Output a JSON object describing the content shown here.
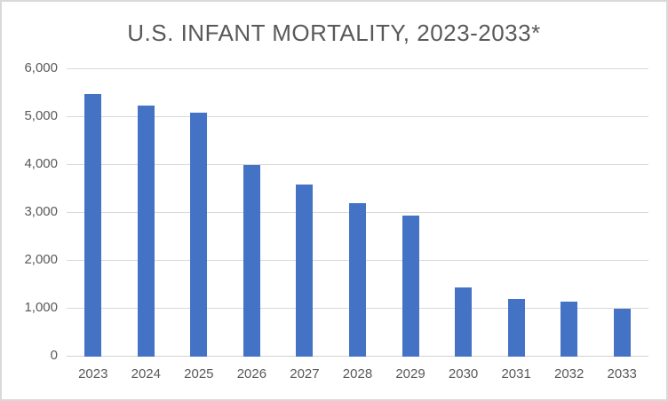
{
  "window": {
    "background_color": "#ffffff",
    "frame_border_color": "#d9d9d9"
  },
  "chart_data": {
    "type": "bar",
    "title": "U.S. INFANT MORTALITY, 2023-2033*",
    "categories": [
      "2023",
      "2024",
      "2025",
      "2026",
      "2027",
      "2028",
      "2029",
      "2030",
      "2031",
      "2032",
      "2033"
    ],
    "values": [
      5480,
      5250,
      5100,
      4000,
      3600,
      3200,
      2950,
      1450,
      1200,
      1150,
      1000
    ],
    "xlabel": "",
    "ylabel": "",
    "ylim": [
      0,
      6000
    ],
    "ytick_step": 1000,
    "yticks": [
      0,
      1000,
      2000,
      3000,
      4000,
      5000,
      6000
    ],
    "ytick_labels": [
      "0",
      "1,000",
      "2,000",
      "3,000",
      "4,000",
      "5,000",
      "6,000"
    ],
    "grid": true,
    "legend": false,
    "bar_color": "#4472c4",
    "gridline_color": "#d9d9d9",
    "text_color": "#595959"
  }
}
